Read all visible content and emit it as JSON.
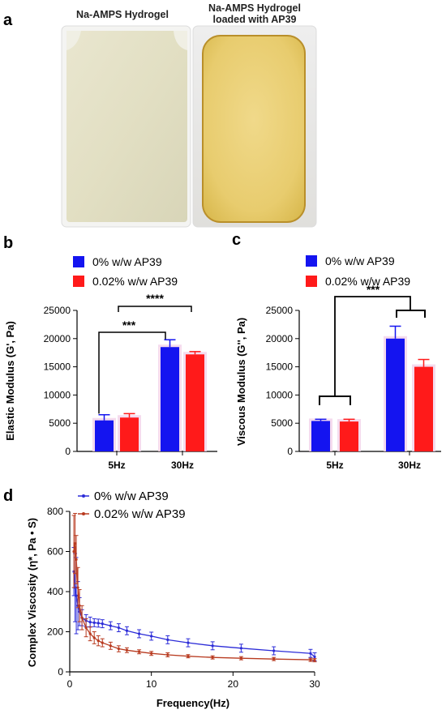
{
  "panels": {
    "a": "a",
    "b": "b",
    "c": "c",
    "d": "d"
  },
  "photos": {
    "left_label": "Na-AMPS Hydrogel",
    "right_label_line1": "Na-AMPS Hydrogel",
    "right_label_line2": "loaded with AP39"
  },
  "colors": {
    "series0": "#1414f0",
    "series1": "#ff1a1a",
    "series0_line": "#2c2cd8",
    "series1_line": "#b83a1f",
    "highlight": "#f3d2ea"
  },
  "chart_data": [
    {
      "id": "b",
      "type": "bar",
      "categories": [
        "5Hz",
        "30Hz"
      ],
      "series": [
        {
          "name": "0% w/w AP39",
          "values": [
            5500,
            18500
          ],
          "errors": [
            1000,
            1300
          ]
        },
        {
          "name": "0.02% w/w AP39",
          "values": [
            6000,
            17200
          ],
          "errors": [
            700,
            500
          ]
        }
      ],
      "ylabel": "Elastic Modulus (G', Pa)",
      "ylim": [
        0,
        25000
      ],
      "yticks": [
        "0",
        "5000",
        "10000",
        "15000",
        "20000",
        "25000"
      ],
      "annotations": [
        "***",
        "****"
      ]
    },
    {
      "id": "c",
      "type": "bar",
      "categories": [
        "5Hz",
        "30Hz"
      ],
      "series": [
        {
          "name": "0% w/w AP39",
          "values": [
            5400,
            20000
          ],
          "errors": [
            300,
            2200
          ]
        },
        {
          "name": "0.02% w/w AP39",
          "values": [
            5300,
            15000
          ],
          "errors": [
            400,
            1300
          ]
        }
      ],
      "ylabel": "Viscous Modulus (G'', Pa)",
      "ylim": [
        0,
        25000
      ],
      "yticks": [
        "0",
        "5000",
        "10000",
        "15000",
        "20000",
        "25000"
      ],
      "annotations": [
        "***"
      ]
    },
    {
      "id": "d",
      "type": "line",
      "xlabel": "Frequency(Hz)",
      "ylabel": "Complex Viscosity (η*, Pa • S)",
      "xlim": [
        0,
        30
      ],
      "ylim": [
        0,
        800
      ],
      "xticks": [
        "0",
        "10",
        "20",
        "30"
      ],
      "yticks": [
        "0",
        "200",
        "400",
        "600",
        "800"
      ],
      "series": [
        {
          "name": "0% w/w AP39",
          "x": [
            0.5,
            0.65,
            0.8,
            1.0,
            1.2,
            1.5,
            2.0,
            2.5,
            3.0,
            3.5,
            4.0,
            5.0,
            6.0,
            7.0,
            8.5,
            10.0,
            12.0,
            14.5,
            17.5,
            21.0,
            25.0,
            29.5,
            30.0
          ],
          "y": [
            500,
            420,
            380,
            330,
            300,
            270,
            255,
            248,
            245,
            243,
            240,
            230,
            220,
            205,
            190,
            178,
            160,
            145,
            130,
            118,
            105,
            92,
            75
          ],
          "err": [
            120,
            170,
            190,
            120,
            70,
            40,
            30,
            25,
            20,
            20,
            20,
            20,
            20,
            20,
            20,
            20,
            20,
            20,
            20,
            20,
            20,
            20,
            20
          ]
        },
        {
          "name": "0.02% w/w AP39",
          "x": [
            0.5,
            0.65,
            0.8,
            1.0,
            1.2,
            1.5,
            2.0,
            2.5,
            3.0,
            3.5,
            4.0,
            5.0,
            6.0,
            7.0,
            8.5,
            10.0,
            12.0,
            14.5,
            17.5,
            21.0,
            25.0,
            29.5,
            30.0
          ],
          "y": [
            600,
            640,
            560,
            420,
            330,
            270,
            220,
            190,
            170,
            155,
            145,
            130,
            115,
            108,
            100,
            92,
            85,
            78,
            72,
            68,
            64,
            60,
            58
          ],
          "err": [
            180,
            150,
            120,
            100,
            80,
            60,
            45,
            35,
            30,
            25,
            20,
            18,
            15,
            12,
            10,
            10,
            10,
            8,
            8,
            8,
            8,
            8,
            8
          ]
        }
      ]
    }
  ]
}
